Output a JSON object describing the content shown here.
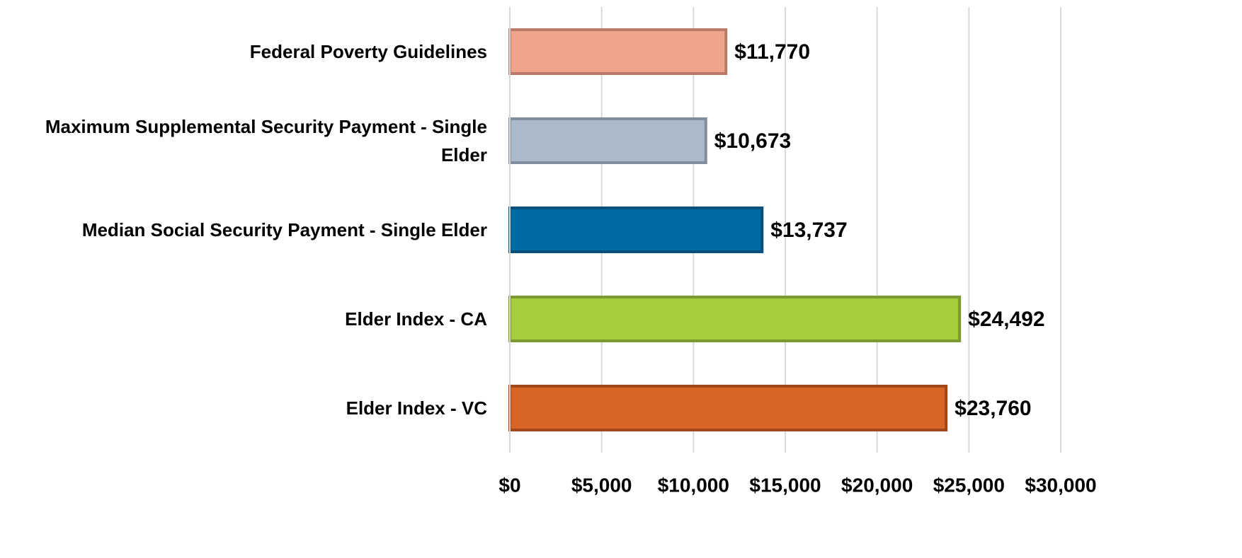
{
  "chart_data": {
    "type": "bar",
    "orientation": "horizontal",
    "categories": [
      "Federal Poverty Guidelines",
      "Maximum Supplemental Security Payment - Single Elder",
      "Median Social Security Payment - Single Elder",
      "Elder Index - CA",
      "Elder Index - VC"
    ],
    "values": [
      11770,
      10673,
      13737,
      24492,
      23760
    ],
    "value_labels": [
      "$11,770",
      "$10,673",
      "$13,737",
      "$24,492",
      "$23,760"
    ],
    "colors": [
      "#f0a58b",
      "#aabacb",
      "#006ba3",
      "#a5cd3c",
      "#d66526"
    ],
    "edge_colors": [
      "#b97a6a",
      "#808e9b",
      "#0a4f7a",
      "#7a9a30",
      "#a0481c"
    ],
    "xlim": [
      0,
      30000
    ],
    "xticks": [
      {
        "value": 0,
        "label": "$0"
      },
      {
        "value": 5000,
        "label": "$5,000"
      },
      {
        "value": 10000,
        "label": "$10,000"
      },
      {
        "value": 15000,
        "label": "$15,000"
      },
      {
        "value": 20000,
        "label": "$20,000"
      },
      {
        "value": 25000,
        "label": "$25,000"
      },
      {
        "value": 30000,
        "label": "$30,000"
      }
    ],
    "grid": true
  }
}
